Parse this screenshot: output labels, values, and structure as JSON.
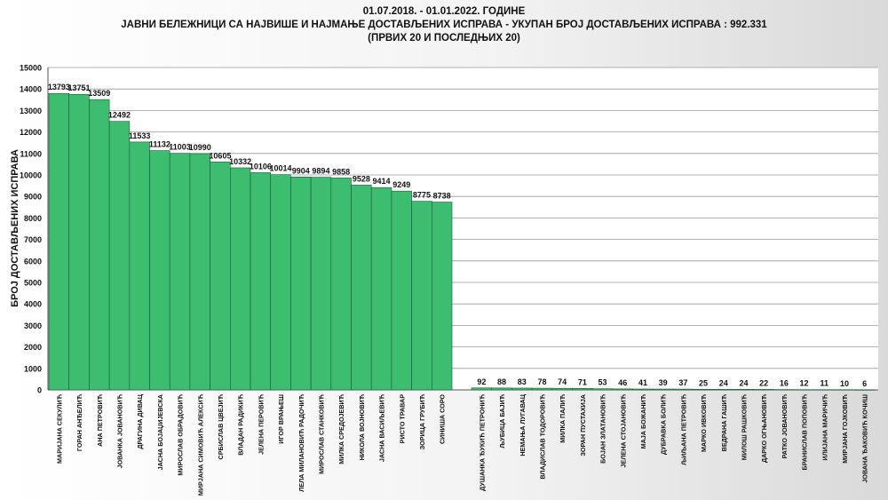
{
  "title": {
    "line1": "01.07.2018. - 01.01.2022. ГОДИНЕ",
    "line2": "ЈАВНИ БЕЛЕЖНИЦИ СА НАЈВИШЕ И НАЈМАЊЕ ДОСТАВЉЕНИХ ИСПРАВА - УКУПАН БРОЈ ДОСТАВЉЕНИХ ИСПРАВА : 992.331",
    "line3": "(ПРВИХ 20 И ПОСЛЕДЊИХ 20)"
  },
  "chart_data": {
    "type": "bar",
    "title": "ЈАВНИ БЕЛЕЖНИЦИ СА НАЈВИШЕ И НАЈМАЊЕ ДОСТАВЉЕНИХ ИСПРАВА - УКУПАН БРОЈ ДОСТАВЉЕНИХ ИСПРАВА : 992.331",
    "ylabel": "БРОЈ ДОСТАВЉЕНИХ ИСПРАВА",
    "xlabel": "",
    "ylim": [
      0,
      15000
    ],
    "ytick_step": 1000,
    "grid": true,
    "bar_color": "#3dbd6f",
    "groups": [
      {
        "categories": [
          "МАРИЈАНА СЕКУЛИЋ",
          "ГОРАН АНЂЕЛИЋ",
          "АНА ПЕТРОВИЋ",
          "ЈОВАНКА ЈОВАНОВИЋ",
          "ДРАГИНА ДИВАЦ",
          "ЈАСНА БОЈАЏИЈЕВСКА",
          "МИРОСЛАВ ОБРАДОВИЋ",
          "МИРЈАНА СИМОВИЋ АЛЕКСИЋ",
          "СРБИСЛАВ ЦВЕЈИЋ",
          "ВЛАДАН РАДИКИЋ",
          "ЈЕЛЕНА ПЕРОВИЋ",
          "ИГОР ВРАЊЕШ",
          "ЛЕЛА МИЛАНОВИЋ РАДОЧИЋ",
          "МИРОСЛАВ СТАНКОВИЋ",
          "МИЛКА СРЕДОЈЕВИЋ",
          "НИКОЛА ВОЈНОВИЋ",
          "ЈАСНА ВАСИЉЕВИЋ",
          "РИСТО ТРАВАР",
          "ЗОРИЦА ГРУБИЋ",
          "СИНИША СОРО"
        ],
        "values": [
          13793,
          13751,
          13509,
          12492,
          11533,
          11132,
          11003,
          10990,
          10605,
          10332,
          10106,
          10014,
          9904,
          9894,
          9858,
          9528,
          9414,
          9249,
          8775,
          8738
        ]
      },
      {
        "categories": [
          "ДУШАНКА ЂУКИЋ ПЕТРОНИЋ",
          "ЉУБИЦА БАЈИЋ",
          "НЕМАЊА ЛУГАВАЦ",
          "ВЛАДИСЛАВ ТОДОРОВИЋ",
          "МИЛКА ПАЛИЋ",
          "ЗОРАН ПУСТАХИЈА",
          "БОЈАН ЗЛАТАНОВИЋ",
          "ЈЕЛЕНА СТОЈАНОВИЋ",
          "МАЈА БОЖАНИЋ",
          "ДУБРАВКА БОЛИЋ",
          "ЉИЉАНА ПЕТРОВИЋ",
          "МАРКО ИВКОВИЋ",
          "ВЕДРАНА ГАШИЋ",
          "МИЛОШ РАШКОВИЋ",
          "ДАРКО ОГЊАНОВИЋ",
          "РАТКО ЈОВАНОВИЋ",
          "БРАНИСЛАВ ПОПОВИЋ",
          "ИЛИЈАНА МАРИЧИЋ",
          "МИРЈАНА ГОЈКОВИЋ",
          "ЈОВАНА ЂАКОВИЋ КОЧИШ"
        ],
        "values": [
          92,
          88,
          83,
          78,
          74,
          71,
          53,
          46,
          41,
          39,
          37,
          25,
          24,
          24,
          22,
          16,
          12,
          11,
          10,
          6
        ]
      }
    ]
  }
}
